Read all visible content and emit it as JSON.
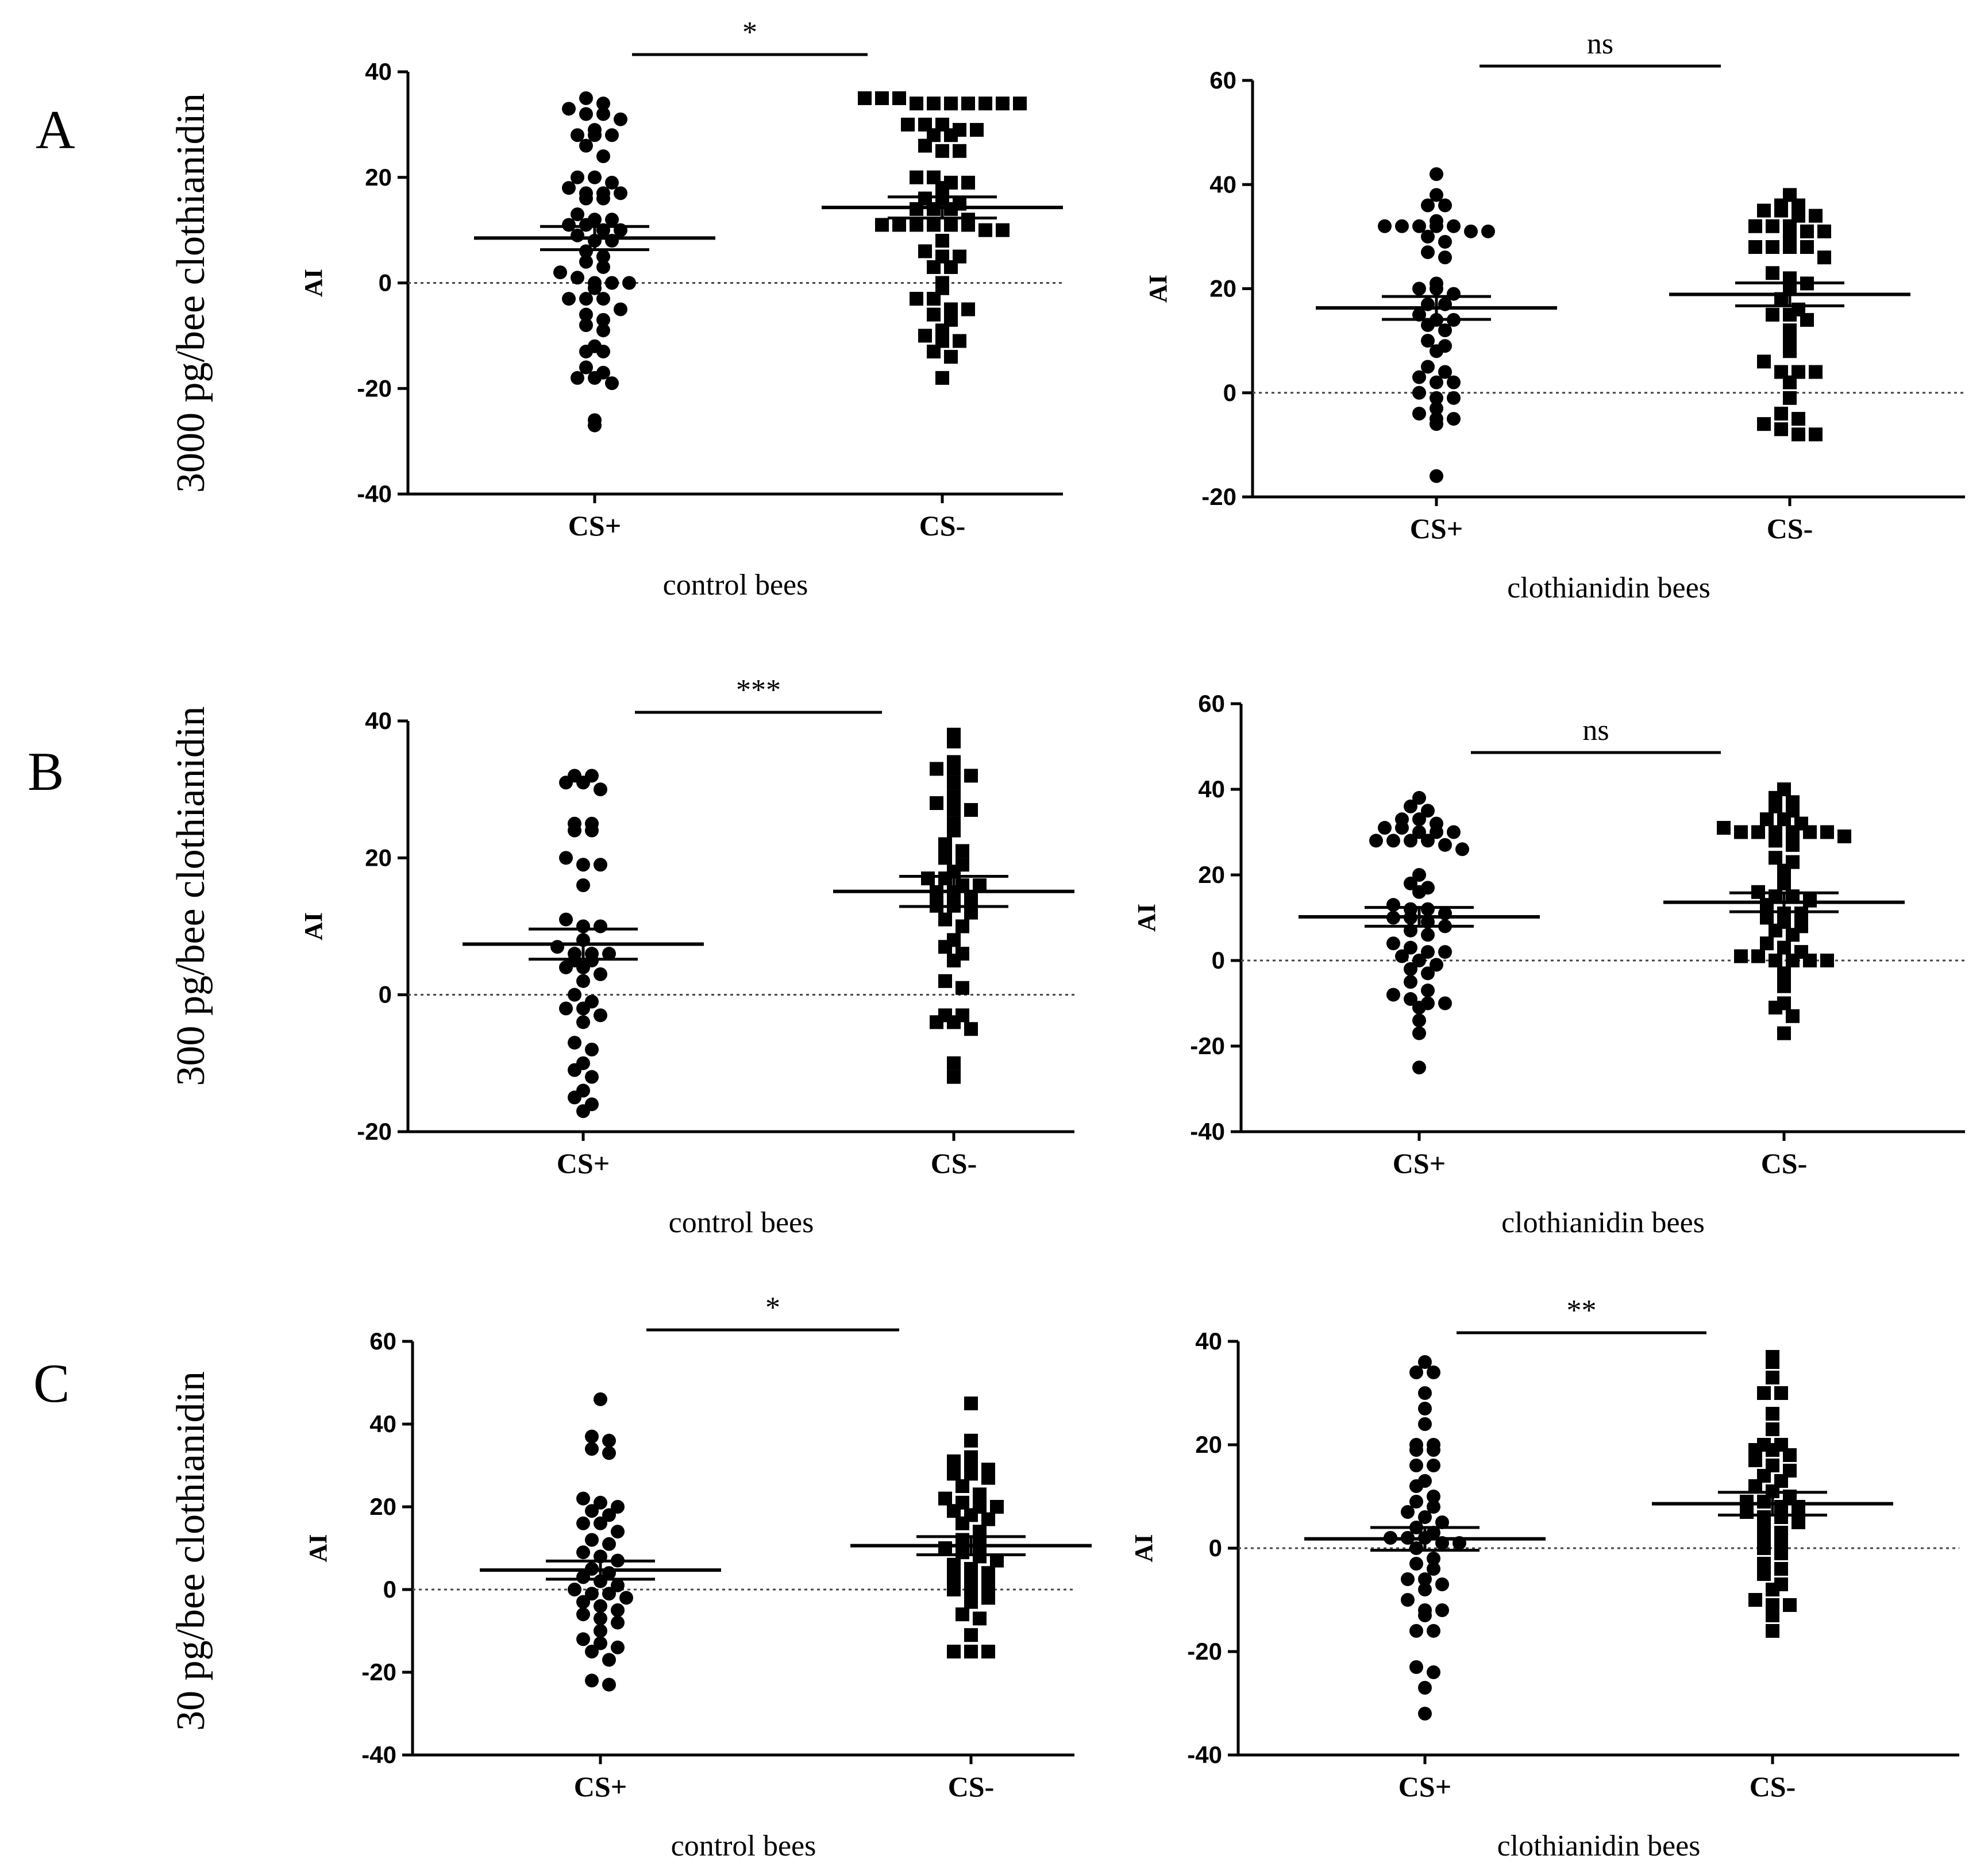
{
  "rows": [
    {
      "letter": "A",
      "dose_label": "3000 pg/bee clothianidin"
    },
    {
      "letter": "B",
      "dose_label": "300 pg/bee clothianidin"
    },
    {
      "letter": "C",
      "dose_label": "30 pg/bee clothianidin"
    }
  ],
  "chart_data": [
    {
      "type": "scatter",
      "panel": "A-control",
      "ylabel": "AI",
      "xlabel": "control bees",
      "categories": [
        "CS+",
        "CS-"
      ],
      "ylim": [
        -40,
        40
      ],
      "yticks": [
        -40,
        -20,
        0,
        20,
        40
      ],
      "significance": "*",
      "series": [
        {
          "name": "CS+",
          "marker": "circle",
          "mean": 8.5,
          "sem": 2.2,
          "values": [
            35,
            34,
            33,
            32,
            32,
            31,
            29,
            28,
            28,
            28,
            26,
            24,
            20,
            20,
            19,
            18,
            17,
            17,
            17,
            16,
            16,
            13,
            12,
            12,
            11,
            11,
            10,
            10,
            9,
            8,
            8,
            6,
            5,
            4,
            3,
            2,
            1,
            0,
            0,
            0,
            -1,
            -3,
            -3,
            -3,
            -5,
            -6,
            -7,
            -8,
            -9,
            -12,
            -13,
            -13,
            -16,
            -17,
            -18,
            -18,
            -19,
            -26,
            -27
          ]
        },
        {
          "name": "CS-",
          "marker": "square",
          "mean": 14.3,
          "sem": 2.0,
          "values": [
            35,
            35,
            35,
            34,
            34,
            34,
            34,
            34,
            34,
            34,
            30,
            30,
            30,
            29,
            29,
            28,
            28,
            26,
            25,
            25,
            20,
            20,
            19,
            19,
            18,
            16,
            16,
            15,
            14,
            14,
            14,
            12,
            11,
            11,
            11,
            11,
            11,
            11,
            10,
            10,
            8,
            6,
            5,
            5,
            3,
            3,
            0,
            -1,
            -3,
            -3,
            -5,
            -5,
            -6,
            -7,
            -9,
            -10,
            -11,
            -11,
            -13,
            -14,
            -18
          ]
        }
      ]
    },
    {
      "type": "scatter",
      "panel": "A-clothianidin",
      "ylabel": "AI",
      "xlabel": "clothianidin bees",
      "categories": [
        "CS+",
        "CS-"
      ],
      "ylim": [
        -20,
        60
      ],
      "yticks": [
        -20,
        0,
        20,
        40,
        60
      ],
      "significance": "ns",
      "series": [
        {
          "name": "CS+",
          "marker": "circle",
          "mean": 16.3,
          "sem": 2.2,
          "values": [
            42,
            38,
            36,
            36,
            33,
            32,
            32,
            32,
            32,
            32,
            31,
            31,
            30,
            29,
            27,
            26,
            21,
            20,
            20,
            19,
            17,
            17,
            15,
            14,
            14,
            13,
            12,
            10,
            9,
            8,
            5,
            4,
            3,
            2,
            2,
            0,
            -1,
            -1,
            -3,
            -4,
            -5,
            -5,
            -6,
            -16
          ]
        },
        {
          "name": "CS-",
          "marker": "square",
          "mean": 18.9,
          "sem": 2.2,
          "values": [
            38,
            36,
            36,
            35,
            35,
            34,
            34,
            32,
            32,
            32,
            31,
            31,
            30,
            28,
            28,
            28,
            28,
            26,
            23,
            22,
            21,
            20,
            18,
            16,
            15,
            15,
            14,
            12,
            10,
            8,
            6,
            4,
            4,
            4,
            2,
            -1,
            -4,
            -5,
            -6,
            -7,
            -8,
            -8
          ]
        }
      ]
    },
    {
      "type": "scatter",
      "panel": "B-control",
      "ylabel": "AI",
      "xlabel": "control bees",
      "categories": [
        "CS+",
        "CS-"
      ],
      "ylim": [
        -20,
        40
      ],
      "yticks": [
        -20,
        0,
        20,
        40
      ],
      "significance": "***",
      "series": [
        {
          "name": "CS+",
          "marker": "circle",
          "mean": 7.4,
          "sem": 2.2,
          "values": [
            32,
            32,
            31,
            31,
            30,
            25,
            25,
            24,
            24,
            20,
            19,
            19,
            16,
            11,
            10,
            10,
            8,
            7,
            6,
            6,
            6,
            5,
            5,
            4,
            4,
            3,
            2,
            0,
            -1,
            -2,
            -2,
            -3,
            -4,
            -7,
            -8,
            -10,
            -11,
            -12,
            -14,
            -15,
            -16,
            -17
          ]
        },
        {
          "name": "CS-",
          "marker": "square",
          "mean": 15.1,
          "sem": 2.2,
          "values": [
            38,
            37,
            34,
            33,
            33,
            32,
            31,
            29,
            28,
            27,
            27,
            25,
            24,
            22,
            21,
            20,
            19,
            18,
            17,
            17,
            16,
            16,
            15,
            15,
            14,
            13,
            13,
            12,
            11,
            10,
            8,
            7,
            6,
            5,
            2,
            1,
            -3,
            -3,
            -4,
            -4,
            -5,
            -10,
            -12
          ]
        }
      ]
    },
    {
      "type": "scatter",
      "panel": "B-clothianidin",
      "ylabel": "AI",
      "xlabel": "clothianidin bees",
      "categories": [
        "CS+",
        "CS-"
      ],
      "ylim": [
        -40,
        60
      ],
      "yticks": [
        -40,
        -20,
        0,
        20,
        40,
        60
      ],
      "significance": "ns",
      "series": [
        {
          "name": "CS+",
          "marker": "circle",
          "mean": 10.2,
          "sem": 2.2,
          "values": [
            38,
            36,
            35,
            33,
            33,
            32,
            31,
            31,
            30,
            30,
            30,
            28,
            28,
            28,
            28,
            27,
            26,
            20,
            18,
            17,
            16,
            13,
            12,
            12,
            11,
            10,
            10,
            9,
            8,
            7,
            6,
            4,
            3,
            2,
            2,
            1,
            0,
            -1,
            -2,
            -3,
            -5,
            -7,
            -8,
            -9,
            -10,
            -10,
            -11,
            -14,
            -17,
            -25
          ]
        },
        {
          "name": "CS-",
          "marker": "square",
          "mean": 13.6,
          "sem": 2.2,
          "values": [
            40,
            38,
            37,
            36,
            35,
            33,
            33,
            32,
            31,
            30,
            30,
            30,
            30,
            30,
            30,
            29,
            28,
            27,
            24,
            23,
            21,
            18,
            16,
            15,
            15,
            14,
            13,
            11,
            11,
            10,
            9,
            8,
            7,
            6,
            4,
            3,
            2,
            1,
            1,
            0,
            0,
            0,
            0,
            -3,
            -6,
            -10,
            -11,
            -13,
            -17
          ]
        }
      ]
    },
    {
      "type": "scatter",
      "panel": "C-control",
      "ylabel": "AI",
      "xlabel": "control bees",
      "categories": [
        "CS+",
        "CS-"
      ],
      "ylim": [
        -40,
        60
      ],
      "yticks": [
        -40,
        -20,
        0,
        20,
        40,
        60
      ],
      "significance": "*",
      "series": [
        {
          "name": "CS+",
          "marker": "circle",
          "mean": 4.7,
          "sem": 2.2,
          "values": [
            46,
            37,
            36,
            34,
            33,
            22,
            21,
            20,
            19,
            18,
            16,
            16,
            14,
            12,
            11,
            9,
            8,
            7,
            5,
            4,
            3,
            2,
            1,
            0,
            -1,
            -1,
            -2,
            -3,
            -4,
            -5,
            -6,
            -7,
            -8,
            -10,
            -12,
            -13,
            -14,
            -15,
            -17,
            -22,
            -23
          ]
        },
        {
          "name": "CS-",
          "marker": "square",
          "mean": 10.6,
          "sem": 2.2,
          "values": [
            45,
            36,
            32,
            31,
            30,
            29,
            28,
            28,
            27,
            25,
            23,
            22,
            21,
            20,
            20,
            19,
            18,
            17,
            16,
            14,
            12,
            11,
            10,
            9,
            8,
            7,
            6,
            5,
            4,
            3,
            2,
            1,
            0,
            0,
            -2,
            -3,
            -6,
            -7,
            -11,
            -15,
            -15,
            -15
          ]
        }
      ]
    },
    {
      "type": "scatter",
      "panel": "C-clothianidin",
      "ylabel": "AI",
      "xlabel": "clothianidin bees",
      "categories": [
        "CS+",
        "CS-"
      ],
      "ylim": [
        -40,
        40
      ],
      "yticks": [
        -40,
        -20,
        0,
        20,
        40
      ],
      "significance": "**",
      "series": [
        {
          "name": "CS+",
          "marker": "circle",
          "mean": 1.8,
          "sem": 2.2,
          "values": [
            36,
            34,
            34,
            30,
            27,
            24,
            20,
            20,
            19,
            19,
            16,
            16,
            13,
            12,
            10,
            9,
            8,
            7,
            6,
            5,
            4,
            3,
            2,
            2,
            2,
            1,
            1,
            0,
            -2,
            -3,
            -4,
            -6,
            -6,
            -7,
            -8,
            -10,
            -12,
            -12,
            -13,
            -16,
            -16,
            -23,
            -24,
            -27,
            -32
          ]
        },
        {
          "name": "CS-",
          "marker": "square",
          "mean": 8.6,
          "sem": 2.2,
          "values": [
            37,
            36,
            33,
            30,
            30,
            26,
            23,
            20,
            20,
            19,
            19,
            18,
            17,
            16,
            15,
            14,
            13,
            12,
            11,
            10,
            9,
            9,
            8,
            8,
            7,
            6,
            6,
            5,
            4,
            3,
            2,
            1,
            0,
            -1,
            -3,
            -4,
            -5,
            -7,
            -8,
            -10,
            -11,
            -11,
            -13,
            -16
          ]
        }
      ]
    }
  ]
}
